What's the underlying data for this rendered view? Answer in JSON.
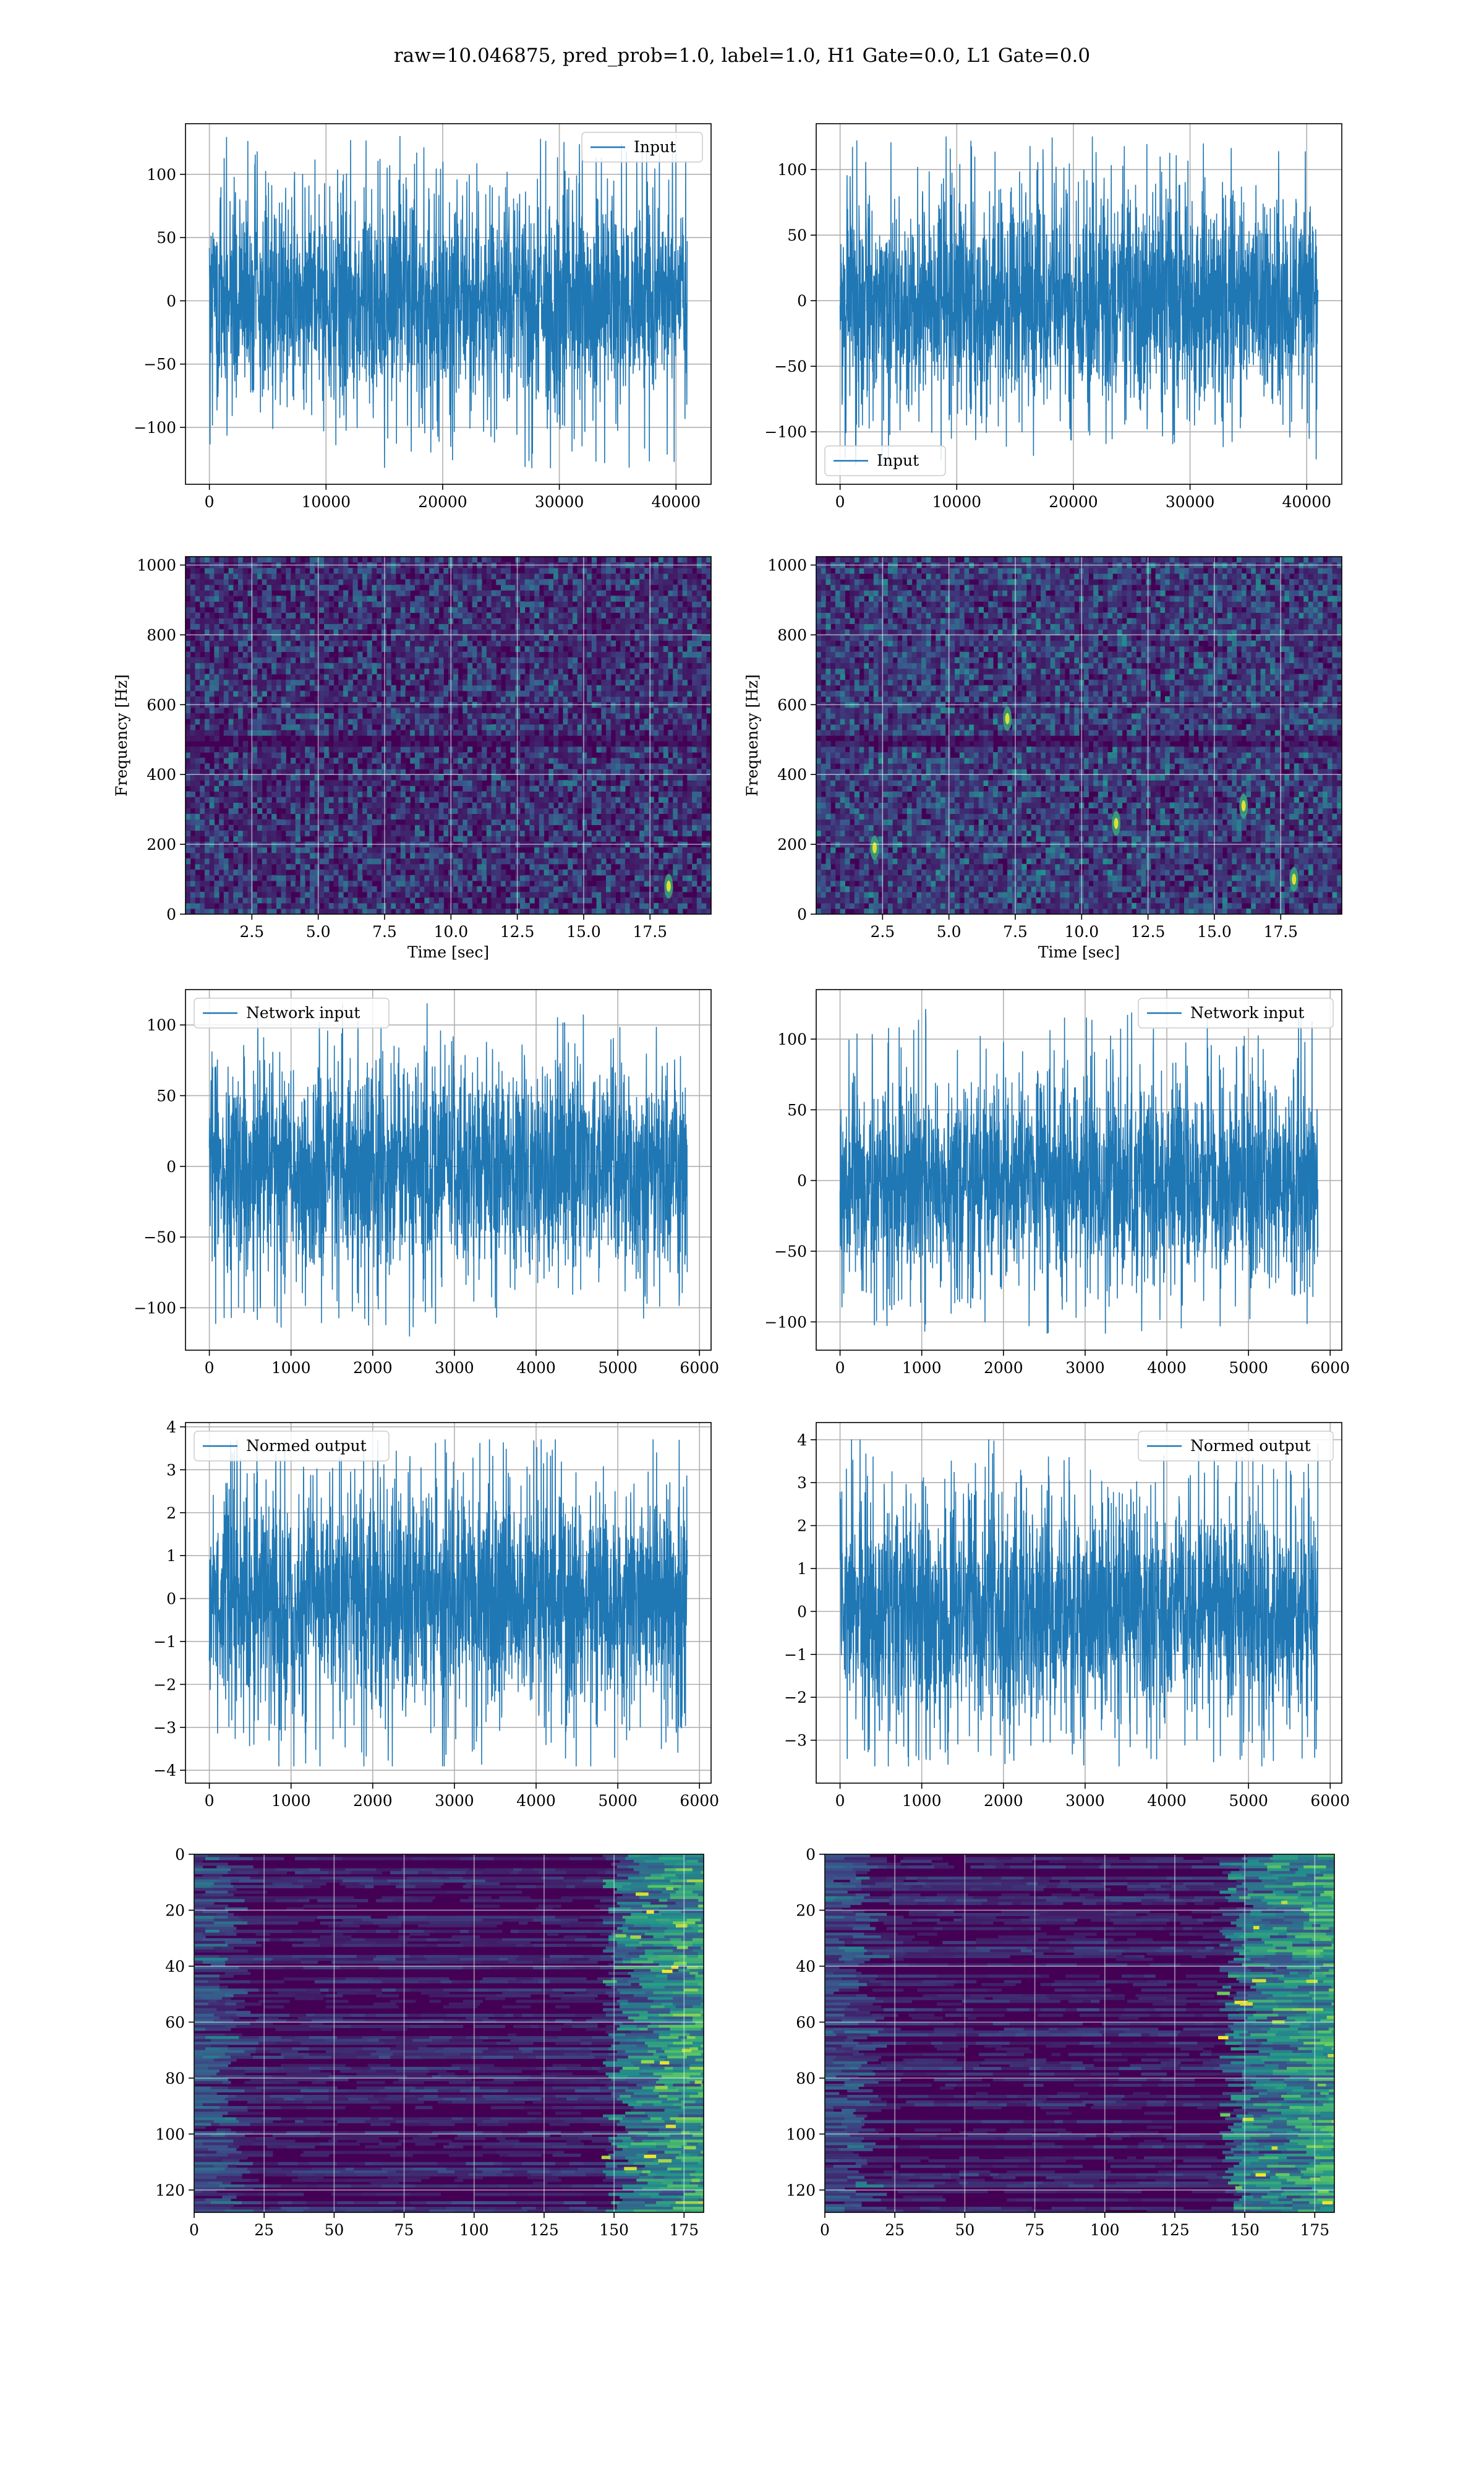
{
  "figure": {
    "suptitle": "raw=10.046875, pred_prob=1.0, label=1.0, H1 Gate=0.0, L1 Gate=0.0",
    "colors": {
      "series": "#1f77b4",
      "grid": "#b0b0b0",
      "viridis_low": "#440154",
      "viridis_mid": "#21918c",
      "viridis_high": "#fde725"
    }
  },
  "chart_data": [
    {
      "id": "raw-h1",
      "type": "line",
      "column": "left",
      "row": 0,
      "series": [
        {
          "name": "Input",
          "n_samples": 40960,
          "amplitude_std": 32,
          "amplitude_extremes": [
            -132,
            130
          ]
        }
      ],
      "xlim": [
        -2048,
        43008
      ],
      "ylim": [
        -145,
        140
      ],
      "xticks": [
        0,
        10000,
        20000,
        30000,
        40000
      ],
      "xtick_labels": [
        "0",
        "10000",
        "20000",
        "30000",
        "40000"
      ],
      "yticks": [
        -100,
        -50,
        0,
        50,
        100
      ],
      "ytick_labels": [
        "−100",
        "−50",
        "0",
        "50",
        "100"
      ],
      "legend": "upper right",
      "grid": true,
      "xlabel": "",
      "ylabel": ""
    },
    {
      "id": "raw-l1",
      "type": "line",
      "column": "right",
      "row": 0,
      "series": [
        {
          "name": "Input",
          "n_samples": 40960,
          "amplitude_std": 31,
          "amplitude_extremes": [
            -125,
            125
          ]
        }
      ],
      "xlim": [
        -2048,
        43008
      ],
      "ylim": [
        -140,
        135
      ],
      "xticks": [
        0,
        10000,
        20000,
        30000,
        40000
      ],
      "xtick_labels": [
        "0",
        "10000",
        "20000",
        "30000",
        "40000"
      ],
      "yticks": [
        -100,
        -50,
        0,
        50,
        100
      ],
      "ytick_labels": [
        "−100",
        "−50",
        "0",
        "50",
        "100"
      ],
      "legend": "lower left",
      "grid": true,
      "xlabel": "",
      "ylabel": ""
    },
    {
      "id": "spec-h1",
      "type": "heatmap",
      "column": "left",
      "row": 1,
      "style": "spectrogram",
      "xlim": [
        0,
        19.8
      ],
      "ylim": [
        0,
        1024
      ],
      "xticks": [
        2.5,
        5.0,
        7.5,
        10.0,
        12.5,
        15.0,
        17.5
      ],
      "xtick_labels": [
        "2.5",
        "5.0",
        "7.5",
        "10.0",
        "12.5",
        "15.0",
        "17.5"
      ],
      "yticks": [
        0,
        200,
        400,
        600,
        800,
        1000
      ],
      "ytick_labels": [
        "0",
        "200",
        "400",
        "600",
        "800",
        "1000"
      ],
      "xlabel": "Time [sec]",
      "ylabel": "Frequency [Hz]",
      "grid": true,
      "colormap": "viridis",
      "bright_spots": [
        [
          18.2,
          80
        ]
      ]
    },
    {
      "id": "spec-l1",
      "type": "heatmap",
      "column": "right",
      "row": 1,
      "style": "spectrogram",
      "xlim": [
        0,
        19.8
      ],
      "ylim": [
        0,
        1024
      ],
      "xticks": [
        2.5,
        5.0,
        7.5,
        10.0,
        12.5,
        15.0,
        17.5
      ],
      "xtick_labels": [
        "2.5",
        "5.0",
        "7.5",
        "10.0",
        "12.5",
        "15.0",
        "17.5"
      ],
      "yticks": [
        0,
        200,
        400,
        600,
        800,
        1000
      ],
      "ytick_labels": [
        "0",
        "200",
        "400",
        "600",
        "800",
        "1000"
      ],
      "xlabel": "Time [sec]",
      "ylabel": "Frequency [Hz]",
      "grid": true,
      "colormap": "viridis",
      "bright_spots": [
        [
          18.0,
          100
        ],
        [
          7.2,
          560
        ],
        [
          16.1,
          310
        ],
        [
          11.3,
          260
        ],
        [
          2.2,
          190
        ]
      ]
    },
    {
      "id": "net-h1",
      "type": "line",
      "column": "left",
      "row": 2,
      "series": [
        {
          "name": "Network input",
          "n_samples": 5850,
          "amplitude_std": 28,
          "amplitude_extremes": [
            -120,
            115
          ]
        }
      ],
      "xlim": [
        -292,
        6142
      ],
      "ylim": [
        -130,
        125
      ],
      "xticks": [
        0,
        1000,
        2000,
        3000,
        4000,
        5000,
        6000
      ],
      "xtick_labels": [
        "0",
        "1000",
        "2000",
        "3000",
        "4000",
        "5000",
        "6000"
      ],
      "yticks": [
        -100,
        -50,
        0,
        50,
        100
      ],
      "ytick_labels": [
        "−100",
        "−50",
        "0",
        "50",
        "100"
      ],
      "legend": "upper left",
      "grid": true,
      "xlabel": "",
      "ylabel": ""
    },
    {
      "id": "net-l1",
      "type": "line",
      "column": "right",
      "row": 2,
      "series": [
        {
          "name": "Network input",
          "n_samples": 5850,
          "amplitude_std": 27,
          "amplitude_extremes": [
            -108,
            123
          ]
        }
      ],
      "xlim": [
        -292,
        6142
      ],
      "ylim": [
        -120,
        135
      ],
      "xticks": [
        0,
        1000,
        2000,
        3000,
        4000,
        5000,
        6000
      ],
      "xtick_labels": [
        "0",
        "1000",
        "2000",
        "3000",
        "4000",
        "5000",
        "6000"
      ],
      "yticks": [
        -100,
        -50,
        0,
        50,
        100
      ],
      "ytick_labels": [
        "−100",
        "−50",
        "0",
        "50",
        "100"
      ],
      "legend": "upper right",
      "grid": true,
      "xlabel": "",
      "ylabel": ""
    },
    {
      "id": "norm-h1",
      "type": "line",
      "column": "left",
      "row": 3,
      "series": [
        {
          "name": "Normed output",
          "n_samples": 5850,
          "amplitude_std": 1.0,
          "amplitude_extremes": [
            -3.9,
            3.7
          ]
        }
      ],
      "xlim": [
        -292,
        6142
      ],
      "ylim": [
        -4.3,
        4.1
      ],
      "xticks": [
        0,
        1000,
        2000,
        3000,
        4000,
        5000,
        6000
      ],
      "xtick_labels": [
        "0",
        "1000",
        "2000",
        "3000",
        "4000",
        "5000",
        "6000"
      ],
      "yticks": [
        -4,
        -3,
        -2,
        -1,
        0,
        1,
        2,
        3,
        4
      ],
      "ytick_labels": [
        "−4",
        "−3",
        "−2",
        "−1",
        "0",
        "1",
        "2",
        "3",
        "4"
      ],
      "legend": "upper left",
      "grid": true,
      "xlabel": "",
      "ylabel": ""
    },
    {
      "id": "norm-l1",
      "type": "line",
      "column": "right",
      "row": 3,
      "series": [
        {
          "name": "Normed output",
          "n_samples": 5850,
          "amplitude_std": 1.0,
          "amplitude_extremes": [
            -3.6,
            4.0
          ]
        }
      ],
      "xlim": [
        -292,
        6142
      ],
      "ylim": [
        -4.0,
        4.4
      ],
      "xticks": [
        0,
        1000,
        2000,
        3000,
        4000,
        5000,
        6000
      ],
      "xtick_labels": [
        "0",
        "1000",
        "2000",
        "3000",
        "4000",
        "5000",
        "6000"
      ],
      "yticks": [
        -3,
        -2,
        -1,
        0,
        1,
        2,
        3,
        4
      ],
      "ytick_labels": [
        "−3",
        "−2",
        "−1",
        "0",
        "1",
        "2",
        "3",
        "4"
      ],
      "legend": "upper right",
      "grid": true,
      "xlabel": "",
      "ylabel": ""
    },
    {
      "id": "feat-h1",
      "type": "heatmap",
      "column": "left",
      "row": 4,
      "style": "features",
      "xlim": [
        0,
        182
      ],
      "ylim": [
        128,
        0
      ],
      "xticks": [
        0,
        25,
        50,
        75,
        100,
        125,
        150,
        175
      ],
      "xtick_labels": [
        "0",
        "25",
        "50",
        "75",
        "100",
        "125",
        "150",
        "175"
      ],
      "yticks": [
        0,
        20,
        40,
        60,
        80,
        100,
        120
      ],
      "ytick_labels": [
        "0",
        "20",
        "40",
        "60",
        "80",
        "100",
        "120"
      ],
      "xlabel": "",
      "ylabel": "",
      "grid": true,
      "colormap": "viridis",
      "n_rows": 128,
      "n_cols": 182,
      "active_region_from_col": 145
    },
    {
      "id": "feat-l1",
      "type": "heatmap",
      "column": "right",
      "row": 4,
      "style": "features",
      "xlim": [
        0,
        182
      ],
      "ylim": [
        128,
        0
      ],
      "xticks": [
        0,
        25,
        50,
        75,
        100,
        125,
        150,
        175
      ],
      "xtick_labels": [
        "0",
        "25",
        "50",
        "75",
        "100",
        "125",
        "150",
        "175"
      ],
      "yticks": [
        0,
        20,
        40,
        60,
        80,
        100,
        120
      ],
      "ytick_labels": [
        "0",
        "20",
        "40",
        "60",
        "80",
        "100",
        "120"
      ],
      "xlabel": "",
      "ylabel": "",
      "grid": true,
      "colormap": "viridis",
      "n_rows": 128,
      "n_cols": 182,
      "active_region_from_col": 140
    }
  ]
}
